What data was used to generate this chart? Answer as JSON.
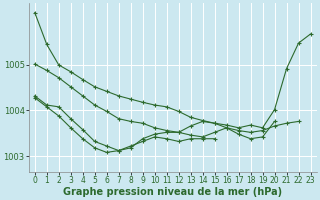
{
  "background_color": "#cce8f0",
  "grid_color": "#ffffff",
  "line_color": "#2d6a2d",
  "marker_color": "#2d6a2d",
  "xlabel": "Graphe pression niveau de la mer (hPa)",
  "xlabel_fontsize": 7,
  "tick_fontsize": 5.5,
  "xlim": [
    -0.5,
    23.5
  ],
  "ylim": [
    1002.65,
    1006.35
  ],
  "yticks": [
    1003,
    1004,
    1005
  ],
  "xticks": [
    0,
    1,
    2,
    3,
    4,
    5,
    6,
    7,
    8,
    9,
    10,
    11,
    12,
    13,
    14,
    15,
    16,
    17,
    18,
    19,
    20,
    21,
    22,
    23
  ],
  "series": [
    [
      1006.15,
      1005.45,
      1005.0,
      1004.85,
      1004.68,
      1004.52,
      1004.42,
      1004.32,
      1004.25,
      1004.18,
      1004.12,
      1004.08,
      1003.98,
      1003.85,
      1003.78,
      1003.72,
      1003.68,
      1003.62,
      1003.68,
      1003.62,
      1004.02,
      1004.92,
      1005.48,
      1005.68
    ],
    [
      1005.02,
      1004.88,
      1004.72,
      1004.52,
      1004.32,
      1004.12,
      1003.98,
      1003.82,
      1003.76,
      1003.72,
      1003.62,
      1003.56,
      1003.52,
      1003.46,
      1003.42,
      1003.52,
      1003.62,
      1003.56,
      1003.52,
      1003.56,
      1003.66,
      1003.72,
      1003.76,
      null
    ],
    [
      1004.32,
      1004.12,
      1004.08,
      1003.82,
      1003.58,
      1003.32,
      1003.22,
      1003.12,
      1003.18,
      1003.38,
      1003.48,
      1003.52,
      1003.52,
      1003.66,
      1003.76,
      1003.72,
      1003.62,
      1003.48,
      1003.38,
      1003.42,
      1003.76,
      null,
      null,
      null
    ],
    [
      1004.28,
      1004.08,
      1003.88,
      1003.62,
      1003.38,
      1003.18,
      1003.08,
      1003.12,
      1003.22,
      1003.32,
      1003.42,
      1003.38,
      1003.32,
      1003.38,
      1003.38,
      1003.38,
      null,
      null,
      null,
      null,
      null,
      null,
      null,
      null
    ]
  ]
}
